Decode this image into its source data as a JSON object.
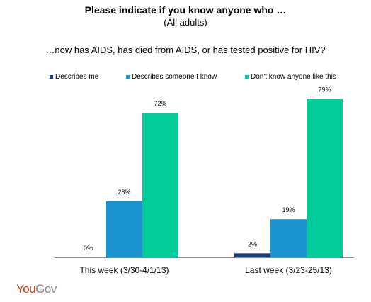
{
  "header": {
    "title": "Please indicate if you know anyone who …",
    "subtitle": "(All adults)",
    "question": "…now has AIDS, has died from AIDS, or has tested positive for HIV?"
  },
  "logo": {
    "text_you": "You",
    "text_gov": "Gov",
    "color": "#cc3b1e"
  },
  "chart_data": {
    "type": "bar",
    "categories": [
      "This week (3/30-4/1/13)",
      "Last week (3/23-25/13)"
    ],
    "series": [
      {
        "name": "Describes me",
        "color": "#1b3a82",
        "values": [
          0,
          2
        ]
      },
      {
        "name": "Describes someone I know",
        "color": "#1b94cf",
        "values": [
          28,
          19
        ]
      },
      {
        "name": "Don't know anyone like this",
        "color": "#00cc99",
        "values": [
          72,
          79
        ]
      }
    ],
    "value_suffix": "%",
    "ylim": [
      0,
      100
    ],
    "grid": false,
    "legend": "top"
  }
}
